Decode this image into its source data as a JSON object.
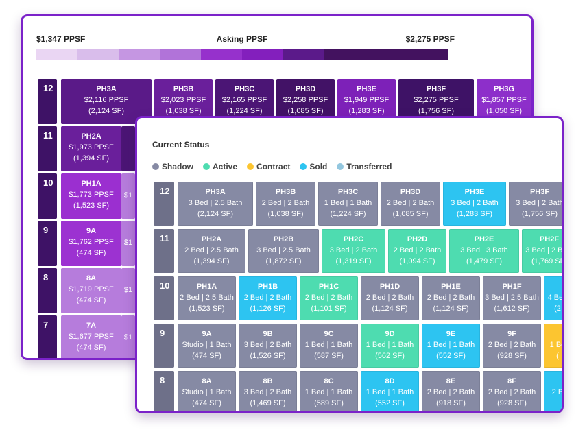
{
  "price_legend": {
    "min_label": "$1,347 PPSF",
    "title": "Asking PPSF",
    "max_label": "$2,275 PPSF",
    "scale_colors": [
      "#ead6f3",
      "#d9bdeb",
      "#c596e2",
      "#b173d9",
      "#9631cc",
      "#831fbd",
      "#5b1a8a",
      "#43125f"
    ]
  },
  "back_grid": {
    "floors": [
      {
        "floor": "12",
        "floor_color": "#3e1266",
        "units": [
          {
            "name": "PH3A",
            "ppsf": "$2,116 PPSF",
            "sf": "(2,124 SF)",
            "color": "#5a1a88"
          },
          {
            "name": "PH3B",
            "ppsf": "$2,023 PPSF",
            "sf": "(1,038 SF)",
            "color": "#6a1f9b"
          },
          {
            "name": "PH3C",
            "ppsf": "$2,165 PPSF",
            "sf": "(1,224 SF)",
            "color": "#4b1575"
          },
          {
            "name": "PH3D",
            "ppsf": "$2,258 PPSF",
            "sf": "(1,085 SF)",
            "color": "#421266"
          },
          {
            "name": "PH3E",
            "ppsf": "$1,949 PPSF",
            "sf": "(1,283 SF)",
            "color": "#7d21b8"
          },
          {
            "name": "PH3F",
            "ppsf": "$2,275 PPSF",
            "sf": "(1,756 SF)",
            "color": "#3e1266"
          },
          {
            "name": "PH3G",
            "ppsf": "$1,857 PPSF",
            "sf": "(1,050 SF)",
            "color": "#8d2fca"
          }
        ]
      },
      {
        "floor": "11",
        "floor_color": "#3e1266",
        "units": [
          {
            "name": "PH2A",
            "ppsf": "$1,973 PPSF",
            "sf": "(1,394 SF)",
            "color": "#6a1f9b"
          }
        ]
      },
      {
        "floor": "10",
        "floor_color": "#3e1266",
        "units": [
          {
            "name": "PH1A",
            "ppsf": "$1,773 PPSF",
            "sf": "(1,523 SF)",
            "color": "#9b2fd0"
          }
        ]
      },
      {
        "floor": "9",
        "floor_color": "#3e1266",
        "units": [
          {
            "name": "9A",
            "ppsf": "$1,762 PPSF",
            "sf": "(474 SF)",
            "color": "#9c32d1"
          }
        ]
      },
      {
        "floor": "8",
        "floor_color": "#3e1266",
        "units": [
          {
            "name": "8A",
            "ppsf": "$1,719 PPSF",
            "sf": "(474 SF)",
            "color": "#b67cdc"
          }
        ]
      },
      {
        "floor": "7",
        "floor_color": "#3e1266",
        "units": [
          {
            "name": "7A",
            "ppsf": "$1,677 PPSF",
            "sf": "(474 SF)",
            "color": "#b67cdc"
          }
        ]
      }
    ],
    "peek_cells": [
      {
        "text": "$2",
        "color": "#9b2fd0"
      },
      {
        "text": "$1",
        "color": "#b67cdc"
      },
      {
        "text": "$1",
        "color": "#b67cdc"
      }
    ]
  },
  "status_panel": {
    "title": "Current Status",
    "legend": [
      {
        "label": "Shadow",
        "color": "#868aa4"
      },
      {
        "label": "Active",
        "color": "#4edcb0"
      },
      {
        "label": "Contract",
        "color": "#fcc530"
      },
      {
        "label": "Sold",
        "color": "#2dc4f1"
      },
      {
        "label": "Transferred",
        "color": "#93c7df"
      }
    ],
    "floors": [
      {
        "floor": "12",
        "units": [
          {
            "name": "PH3A",
            "config": "3 Bed | 2.5 Bath",
            "sf": "(2,124 SF)",
            "status": "Shadow"
          },
          {
            "name": "PH3B",
            "config": "2 Bed | 2 Bath",
            "sf": "(1,038 SF)",
            "status": "Shadow"
          },
          {
            "name": "PH3C",
            "config": "1 Bed | 1 Bath",
            "sf": "(1,224 SF)",
            "status": "Shadow"
          },
          {
            "name": "PH3D",
            "config": "2 Bed | 2 Bath",
            "sf": "(1,085 SF)",
            "status": "Shadow"
          },
          {
            "name": "PH3E",
            "config": "3 Bed | 2 Bath",
            "sf": "(1,283 SF)",
            "status": "Sold"
          },
          {
            "name": "PH3F",
            "config": "3 Bed | 2 Bath",
            "sf": "(1,756 SF)",
            "status": "Shadow"
          }
        ]
      },
      {
        "floor": "11",
        "units": [
          {
            "name": "PH2A",
            "config": "2 Bed | 2.5 Bath",
            "sf": "(1,394 SF)",
            "status": "Shadow"
          },
          {
            "name": "PH2B",
            "config": "3 Bed | 2.5 Bath",
            "sf": "(1,872 SF)",
            "status": "Shadow"
          },
          {
            "name": "PH2C",
            "config": "3 Bed | 2 Bath",
            "sf": "(1,319 SF)",
            "status": "Active"
          },
          {
            "name": "PH2D",
            "config": "2 Bed | 2 Bath",
            "sf": "(1,094 SF)",
            "status": "Active"
          },
          {
            "name": "PH2E",
            "config": "3 Bed | 3 Bath",
            "sf": "(1,479 SF)",
            "status": "Active"
          },
          {
            "name": "PH2F",
            "config": "3 Bed | 2 Bath",
            "sf": "(1,769 SF)",
            "status": "Active"
          }
        ]
      },
      {
        "floor": "10",
        "units": [
          {
            "name": "PH1A",
            "config": "2 Bed | 2.5 Bath",
            "sf": "(1,523 SF)",
            "status": "Shadow"
          },
          {
            "name": "PH1B",
            "config": "2 Bed | 2 Bath",
            "sf": "(1,126 SF)",
            "status": "Sold"
          },
          {
            "name": "PH1C",
            "config": "2 Bed | 2 Bath",
            "sf": "(1,101 SF)",
            "status": "Active"
          },
          {
            "name": "PH1D",
            "config": "2 Bed | 2 Bath",
            "sf": "(1,124 SF)",
            "status": "Shadow"
          },
          {
            "name": "PH1E",
            "config": "2 Bed | 2 Bath",
            "sf": "(1,124 SF)",
            "status": "Shadow"
          },
          {
            "name": "PH1F",
            "config": "3 Bed | 2.5 Bath",
            "sf": "(1,612 SF)",
            "status": "Shadow"
          },
          {
            "name": "",
            "config": "4 Bed",
            "sf": "(2",
            "status": "Sold"
          }
        ]
      },
      {
        "floor": "9",
        "units": [
          {
            "name": "9A",
            "config": "Studio | 1 Bath",
            "sf": "(474 SF)",
            "status": "Shadow"
          },
          {
            "name": "9B",
            "config": "3 Bed | 2 Bath",
            "sf": "(1,526 SF)",
            "status": "Shadow"
          },
          {
            "name": "9C",
            "config": "1 Bed | 1 Bath",
            "sf": "(587 SF)",
            "status": "Shadow"
          },
          {
            "name": "9D",
            "config": "1 Bed | 1 Bath",
            "sf": "(562 SF)",
            "status": "Active"
          },
          {
            "name": "9E",
            "config": "1 Bed | 1 Bath",
            "sf": "(552 SF)",
            "status": "Sold"
          },
          {
            "name": "9F",
            "config": "2 Bed | 2 Bath",
            "sf": "(928 SF)",
            "status": "Shadow"
          },
          {
            "name": "",
            "config": "1 Be",
            "sf": "(",
            "status": "Contract"
          }
        ]
      },
      {
        "floor": "8",
        "units": [
          {
            "name": "8A",
            "config": "Studio | 1 Bath",
            "sf": "(474 SF)",
            "status": "Shadow"
          },
          {
            "name": "8B",
            "config": "3 Bed | 2 Bath",
            "sf": "(1,469 SF)",
            "status": "Shadow"
          },
          {
            "name": "8C",
            "config": "1 Bed | 1 Bath",
            "sf": "(589 SF)",
            "status": "Shadow"
          },
          {
            "name": "8D",
            "config": "1 Bed | 1 Bath",
            "sf": "(552 SF)",
            "status": "Sold"
          },
          {
            "name": "8E",
            "config": "2 Bed | 2 Bath",
            "sf": "(918 SF)",
            "status": "Shadow"
          },
          {
            "name": "8F",
            "config": "2 Bed | 2 Bath",
            "sf": "(928 SF)",
            "status": "Shadow"
          },
          {
            "name": "",
            "config": "2 B",
            "sf": "",
            "status": "Sold"
          }
        ]
      }
    ]
  }
}
